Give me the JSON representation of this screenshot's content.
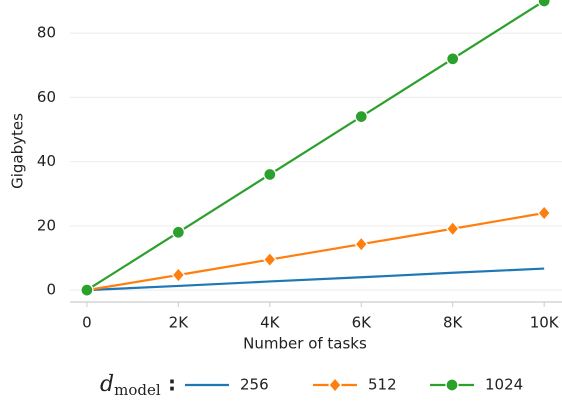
{
  "chart_data": {
    "type": "line",
    "x_label": "Number of tasks",
    "y_label": "Gigabytes",
    "x": [
      0,
      2000,
      4000,
      6000,
      8000,
      10000
    ],
    "series": [
      {
        "name": "256",
        "color": "#1f77b4",
        "marker": "none",
        "values": [
          0,
          1.3,
          2.7,
          4.0,
          5.4,
          6.7
        ]
      },
      {
        "name": "512",
        "color": "#ff7f0e",
        "marker": "diamond",
        "values": [
          0,
          4.7,
          9.5,
          14.3,
          19.1,
          24
        ]
      },
      {
        "name": "1024",
        "color": "#2ca02c",
        "marker": "circle",
        "values": [
          0,
          18,
          36,
          54,
          72,
          90
        ]
      }
    ],
    "xlim": [
      -370,
      10390
    ],
    "ylim": [
      -3.7,
      90.3
    ],
    "xticks": [
      0,
      {
        "value": 2000,
        "label": "2K"
      },
      {
        "value": 4000,
        "label": "4K"
      },
      {
        "value": 6000,
        "label": "6K"
      },
      {
        "value": 8000,
        "label": "8K"
      },
      {
        "value": 10000,
        "label": "10K"
      }
    ],
    "yticks": [
      0,
      20,
      40,
      60,
      80
    ],
    "grid": true,
    "legend": {
      "position": "bottom",
      "title": {
        "symbol": "d",
        "subscript": "model"
      }
    }
  }
}
